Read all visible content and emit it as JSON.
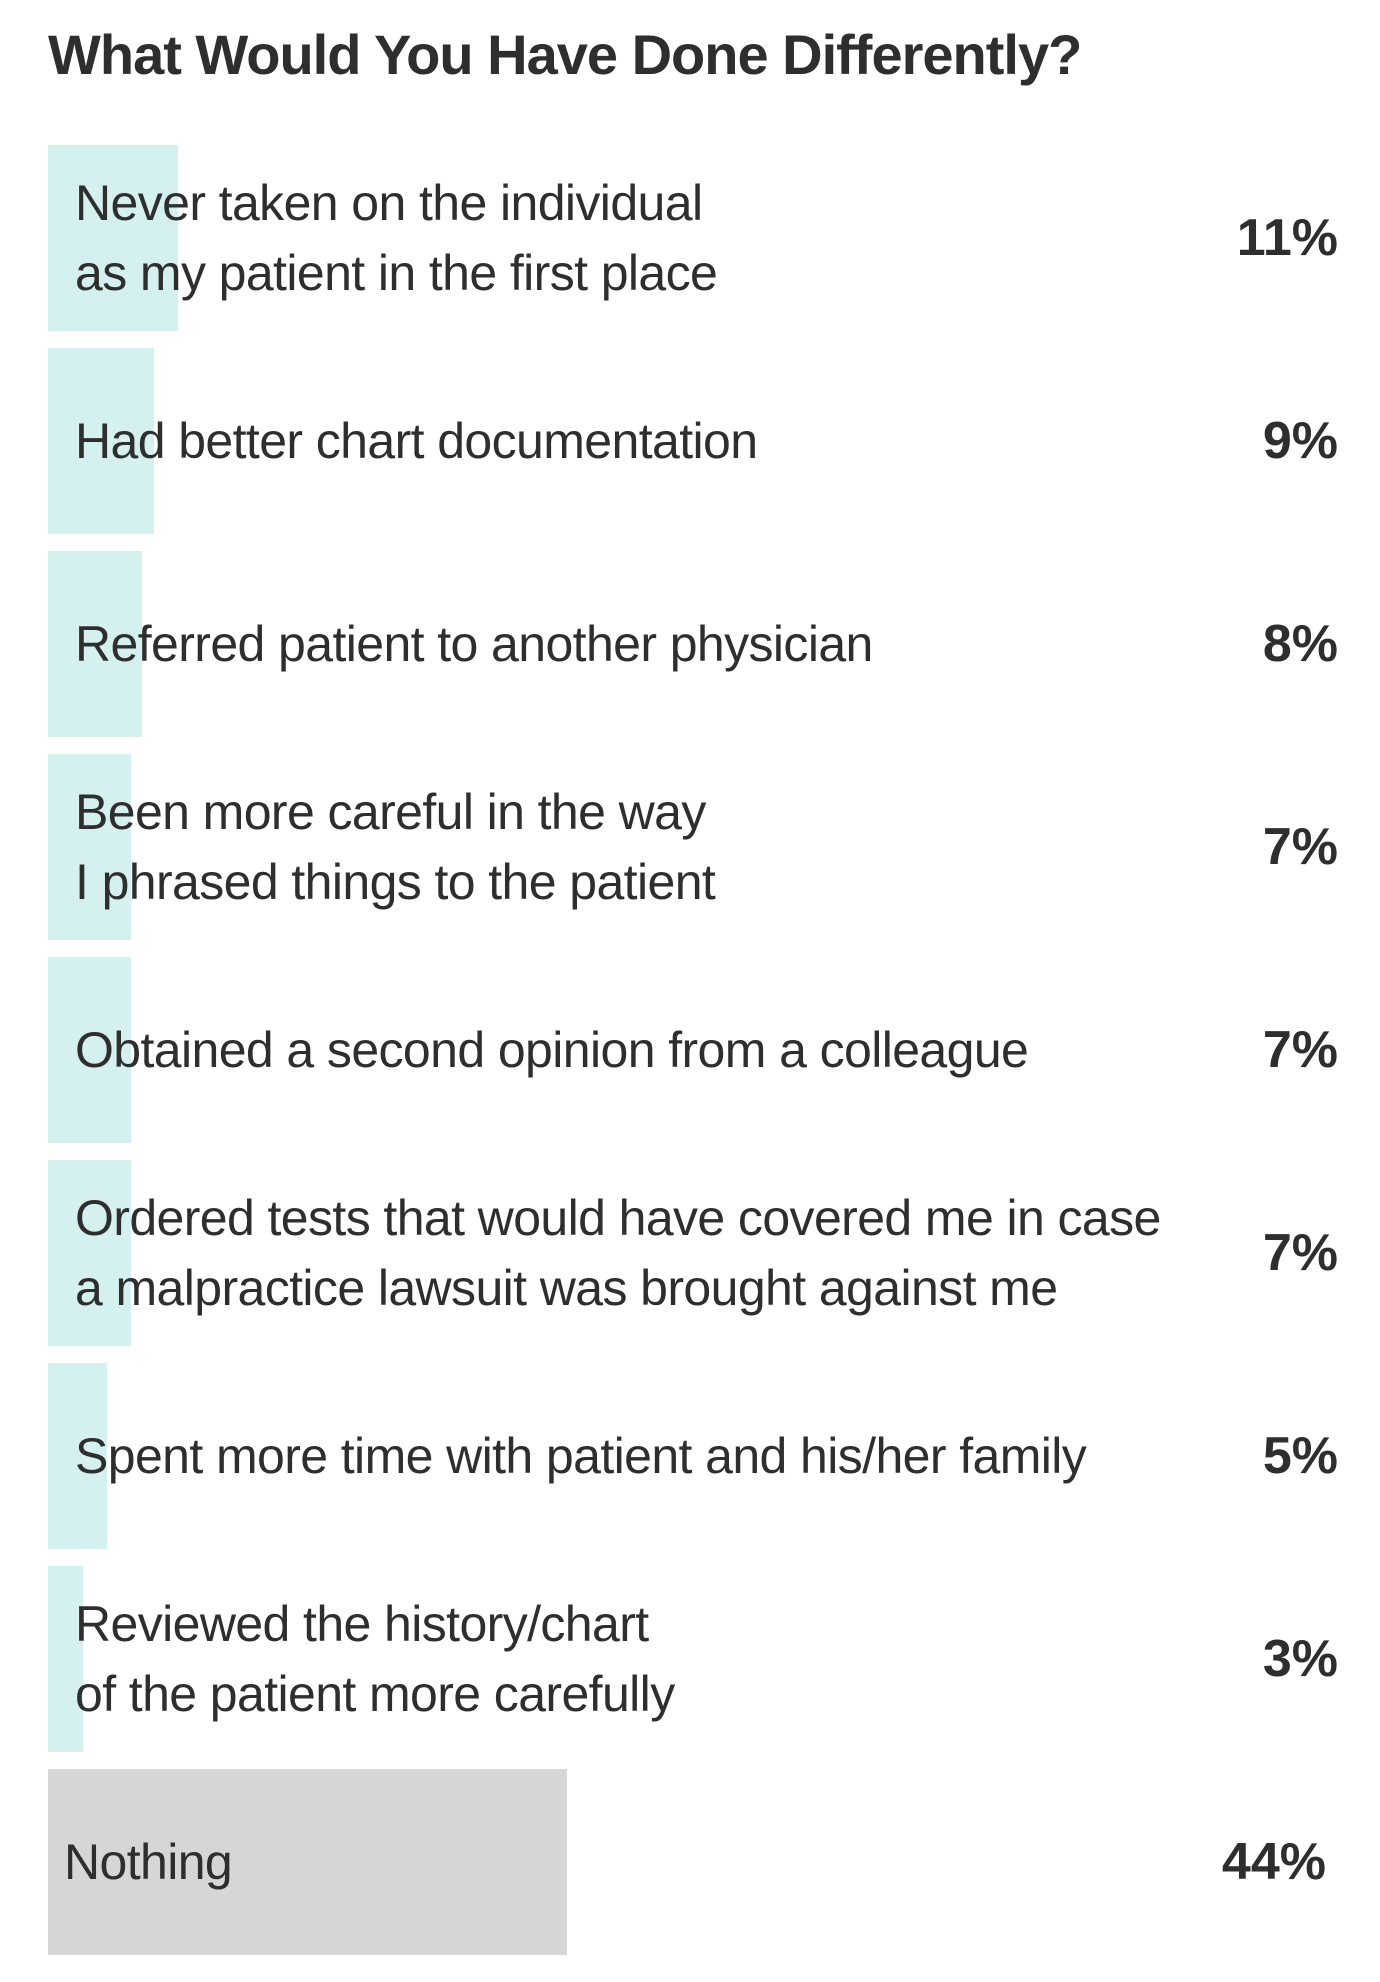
{
  "chart_data": {
    "type": "bar",
    "orientation": "horizontal",
    "title": "What Would You Have Done Differently?",
    "categories": [
      "Never taken on the individual\nas my patient in the first place",
      "Had better chart documentation",
      "Referred patient to another physician",
      "Been more careful in the way\nI phrased things to the patient",
      "Obtained a second opinion from a colleague",
      "Ordered tests that would have covered me in case\na malpractice lawsuit was brought against me",
      "Spent more time with patient and his/her family",
      "Reviewed the history/chart\nof the patient more carefully",
      "Nothing"
    ],
    "values": [
      11,
      9,
      8,
      7,
      7,
      7,
      5,
      3,
      44
    ],
    "value_labels": [
      "11%",
      "9%",
      "8%",
      "7%",
      "7%",
      "7%",
      "5%",
      "3%",
      "44%"
    ],
    "unit": "%",
    "xlim": [
      0,
      100
    ],
    "colors": {
      "bar": "#d4f0ef",
      "nothing_bar": "#d6d6d6",
      "text": "#2e2e2e"
    },
    "grid": false,
    "legend": "none"
  }
}
